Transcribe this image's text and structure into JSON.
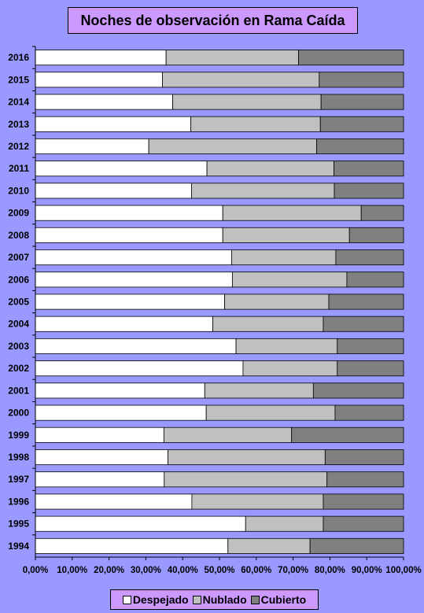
{
  "chart_data": {
    "type": "bar",
    "orientation": "horizontal",
    "stacked": "percent",
    "title": "Noches de observación en Rama Caída",
    "categories": [
      "2016",
      "2015",
      "2014",
      "2013",
      "2012",
      "2011",
      "2010",
      "2009",
      "2008",
      "2007",
      "2006",
      "2005",
      "2004",
      "2003",
      "2002",
      "2001",
      "2000",
      "1999",
      "1998",
      "1997",
      "1996",
      "1995",
      "1994"
    ],
    "series": [
      {
        "name": "Despejado",
        "color": "#ffffff",
        "values": [
          35.5,
          34.5,
          37.3,
          42.2,
          30.8,
          46.6,
          42.4,
          50.9,
          50.9,
          53.3,
          53.5,
          51.4,
          48.2,
          54.5,
          56.4,
          46.0,
          46.4,
          34.9,
          36.0,
          35.0,
          42.5,
          57.1,
          52.3
        ]
      },
      {
        "name": "Nublado",
        "color": "#c0c0c0",
        "values": [
          36.0,
          42.6,
          40.3,
          35.2,
          45.6,
          34.5,
          38.8,
          37.6,
          34.4,
          28.3,
          31.1,
          28.3,
          30.0,
          27.5,
          25.6,
          29.5,
          35.0,
          34.7,
          42.7,
          44.2,
          35.7,
          21.1,
          22.3
        ]
      },
      {
        "name": "Cubierto",
        "color": "#808080",
        "values": [
          28.5,
          22.9,
          22.4,
          22.6,
          23.6,
          18.9,
          18.8,
          11.5,
          14.7,
          18.4,
          15.4,
          20.3,
          21.8,
          18.0,
          18.0,
          24.5,
          18.6,
          30.4,
          21.3,
          20.8,
          21.8,
          21.8,
          25.4
        ]
      }
    ],
    "xlim": [
      0,
      100
    ],
    "xticks": [
      "0,00%",
      "10,00%",
      "20,00%",
      "30,00%",
      "40,00%",
      "50,00%",
      "60,00%",
      "70,00%",
      "80,00%",
      "90,00%",
      "100,00%"
    ],
    "grid": false,
    "legend_position": "bottom"
  }
}
